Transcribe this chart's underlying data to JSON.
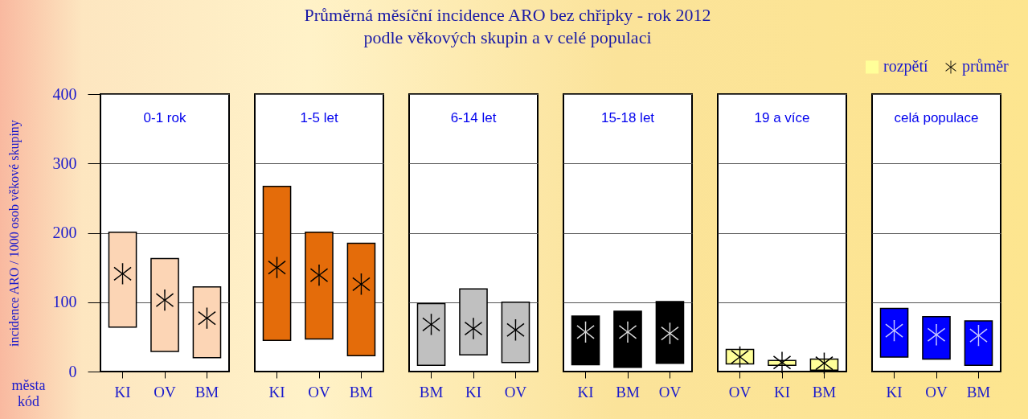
{
  "chart_data": [
    {
      "type": "bar",
      "ylabel": "incidence ARO / 1000 osob věkové skupiny",
      "xlabel": "města kód",
      "categories": [
        "KI",
        "OV",
        "BM"
      ],
      "series": [
        {
          "color": "#fcd5b5",
          "base": [
            64,
            29,
            20
          ],
          "values": [
            137,
            134,
            102
          ]
        },
        {
          "type": "scatter",
          "x": [
            "KI",
            "OV",
            "BM"
          ],
          "color": "#000000",
          "values": [
            141,
            103,
            77
          ]
        }
      ],
      "ylim": [
        0,
        400
      ],
      "yticks": [
        0,
        100,
        200,
        300,
        400
      ],
      "grid": "y",
      "marker": "cross",
      "annotations": [
        "0-1 rok"
      ]
    },
    {
      "type": "bar",
      "categories": [
        "KI",
        "OV",
        "BM"
      ],
      "series": [
        {
          "color": "#e46c0a",
          "base": [
            45,
            47,
            23
          ],
          "values": [
            222,
            154,
            162
          ]
        },
        {
          "type": "scatter",
          "x": [
            "KI",
            "OV",
            "BM"
          ],
          "color": "#000000",
          "values": [
            150,
            139,
            126
          ]
        }
      ],
      "ylim": [
        0,
        400
      ],
      "yticks": [
        0,
        100,
        200,
        300,
        400
      ],
      "grid": "y",
      "marker": "cross",
      "tick_labels": "x",
      "annotations": [
        "1-5 let"
      ]
    },
    {
      "type": "bar",
      "title": "Průměrná měsíční incidence ARO bez chřipky - rok 2012",
      "subtitle": "podle věkových skupin a v celé populaci",
      "categories": [
        "BM",
        "KI",
        "OV"
      ],
      "series": [
        {
          "color": "#c0c0c0",
          "base": [
            9,
            24,
            13
          ],
          "values": [
            89,
            95,
            87
          ]
        },
        {
          "type": "scatter",
          "x": [
            "BM",
            "KI",
            "OV"
          ],
          "color": "#000000",
          "values": [
            68,
            62,
            60
          ]
        }
      ],
      "ylim": [
        0,
        400
      ],
      "yticks": [
        0,
        100,
        200,
        300,
        400
      ],
      "grid": "y",
      "marker": "cross",
      "tick_labels": "x",
      "annotations": [
        "6-14 let"
      ]
    },
    {
      "type": "bar",
      "categories": [
        "KI",
        "BM",
        "OV"
      ],
      "series": [
        {
          "color": "#000000",
          "base": [
            10,
            6,
            12
          ],
          "values": [
            70,
            81,
            89
          ]
        },
        {
          "type": "scatter",
          "x": [
            "KI",
            "BM",
            "OV"
          ],
          "color": "#d9d9d9",
          "values": [
            57,
            57,
            55
          ]
        }
      ],
      "ylim": [
        0,
        400
      ],
      "yticks": [
        0,
        100,
        200,
        300,
        400
      ],
      "grid": "y",
      "marker": "cross",
      "tick_labels": "x",
      "annotations": [
        "15-18 let"
      ]
    },
    {
      "type": "bar",
      "categories": [
        "OV",
        "KI",
        "BM"
      ],
      "series": [
        {
          "name": "rozpětí",
          "color": "#ffff99",
          "base": [
            11,
            9,
            2
          ],
          "values": [
            21,
            7,
            16
          ]
        },
        {
          "type": "scatter",
          "name": "průměr",
          "x": [
            "OV",
            "KI",
            "BM"
          ],
          "color": "#000000",
          "values": [
            21,
            13,
            12
          ]
        }
      ],
      "ylim": [
        0,
        400
      ],
      "yticks": [
        0,
        100,
        200,
        300,
        400
      ],
      "grid": "y",
      "marker": "cross",
      "tick_labels": "x",
      "legend": "top right",
      "annotations": [
        "19 a více"
      ]
    },
    {
      "type": "bar",
      "categories": [
        "KI",
        "OV",
        "BM"
      ],
      "series": [
        {
          "color": "#0000ff",
          "base": [
            21,
            18,
            9
          ],
          "values": [
            70,
            61,
            64
          ]
        },
        {
          "type": "scatter",
          "x": [
            "KI",
            "OV",
            "BM"
          ],
          "color": "#c8c8ff",
          "values": [
            59,
            53,
            52
          ]
        }
      ],
      "ylim": [
        0,
        400
      ],
      "yticks": [
        0,
        100,
        200,
        300,
        400
      ],
      "grid": "y",
      "marker": "cross",
      "tick_labels": "x",
      "annotations": [
        "celá populace"
      ]
    }
  ]
}
